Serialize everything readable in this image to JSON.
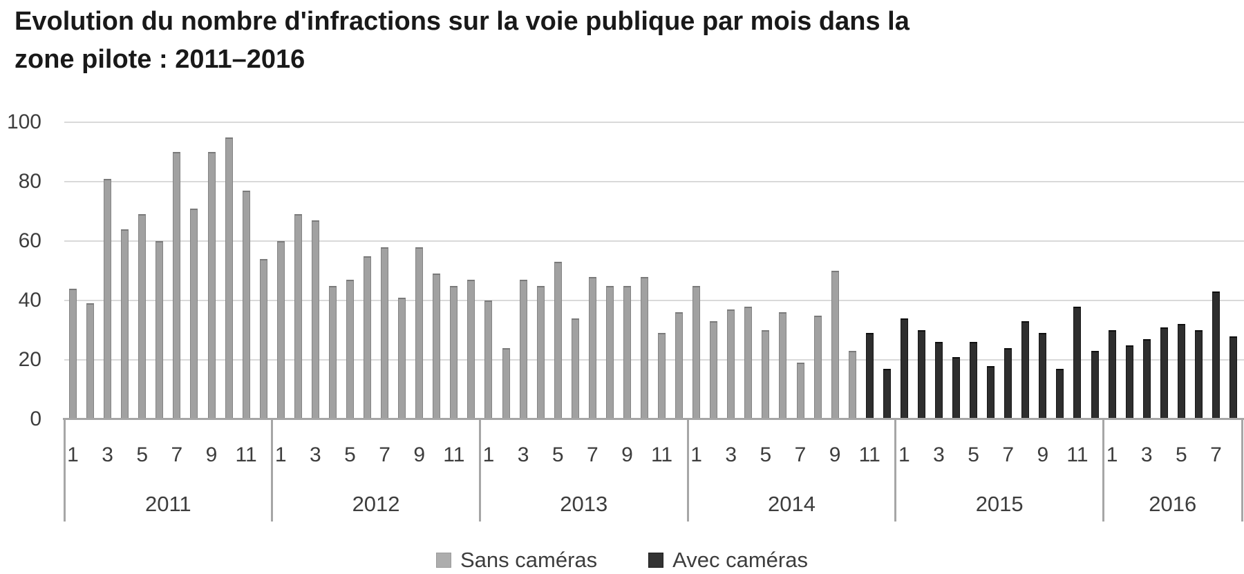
{
  "title": {
    "line1": "Evolution du nombre d'infractions sur la voie publique par mois dans la",
    "line2": "zone pilote : 2011–2016"
  },
  "legend": {
    "items": [
      {
        "label": "Sans caméras",
        "color": "#adadad"
      },
      {
        "label": "Avec caméras",
        "color": "#333333"
      }
    ]
  },
  "chart_data": {
    "type": "bar",
    "title": "Evolution du nombre d'infractions sur la voie publique par mois dans la zone pilote : 2011–2016",
    "xlabel": "",
    "ylabel": "",
    "ylim": [
      0,
      100
    ],
    "y_ticks": [
      0,
      20,
      40,
      60,
      80,
      100
    ],
    "grid": true,
    "legend_position": "bottom",
    "series": [
      {
        "name": "Sans caméras",
        "color": "#a1a1a1"
      },
      {
        "name": "Avec caméras",
        "color": "#2e2e2e"
      }
    ],
    "first_avec_index": 46,
    "years": [
      {
        "label": "2011",
        "month_labels": [
          "1",
          "3",
          "5",
          "7",
          "9",
          "11"
        ],
        "values": [
          44,
          39,
          81,
          64,
          69,
          60,
          90,
          71,
          90,
          95,
          77,
          54
        ]
      },
      {
        "label": "2012",
        "month_labels": [
          "1",
          "3",
          "5",
          "7",
          "9",
          "11"
        ],
        "values": [
          60,
          69,
          67,
          45,
          47,
          55,
          58,
          41,
          58,
          49,
          45,
          47
        ]
      },
      {
        "label": "2013",
        "month_labels": [
          "1",
          "3",
          "5",
          "7",
          "9",
          "11"
        ],
        "values": [
          40,
          24,
          47,
          45,
          53,
          34,
          48,
          45,
          45,
          48,
          29,
          36
        ]
      },
      {
        "label": "2014",
        "month_labels": [
          "1",
          "3",
          "5",
          "7",
          "9",
          "11"
        ],
        "values": [
          45,
          33,
          37,
          38,
          30,
          36,
          19,
          35,
          50,
          23,
          29,
          17
        ]
      },
      {
        "label": "2015",
        "month_labels": [
          "1",
          "3",
          "5",
          "7",
          "9",
          "11"
        ],
        "values": [
          34,
          30,
          26,
          21,
          26,
          18,
          24,
          33,
          29,
          17,
          38,
          23
        ]
      },
      {
        "label": "2016",
        "month_labels": [
          "1",
          "3",
          "5",
          "7"
        ],
        "values": [
          30,
          25,
          27,
          31,
          32,
          30,
          43,
          28
        ]
      }
    ]
  }
}
